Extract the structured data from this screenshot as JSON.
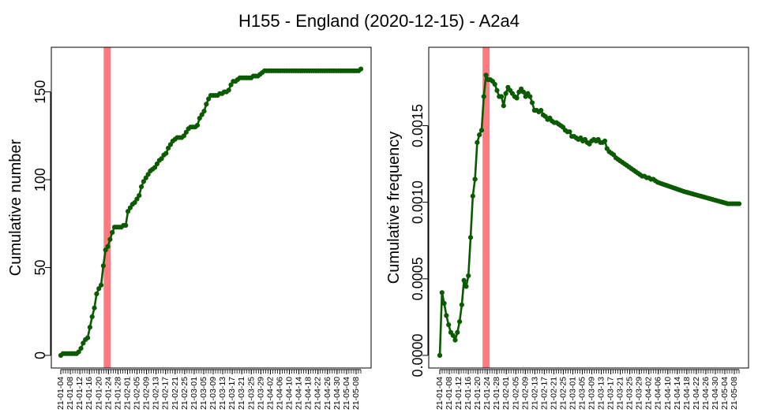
{
  "title": "H155 - England (2020-12-15) - A2a4",
  "colors": {
    "line": "#0a5b00",
    "highlight": "#ff7b7f",
    "axis": "#000000"
  },
  "shared_x_ticks": [
    "21-01-04",
    "21-01-08",
    "21-01-12",
    "21-01-16",
    "21-01-20",
    "21-01-24",
    "21-01-28",
    "21-02-01",
    "21-02-05",
    "21-02-09",
    "21-02-13",
    "21-02-17",
    "21-02-21",
    "21-02-25",
    "21-03-01",
    "21-03-05",
    "21-03-09",
    "21-03-13",
    "21-03-17",
    "21-03-21",
    "21-03-25",
    "21-03-29",
    "21-04-02",
    "21-04-06",
    "21-04-10",
    "21-04-14",
    "21-04-18",
    "21-04-22",
    "21-04-26",
    "21-04-30",
    "21-05-04",
    "21-05-08"
  ],
  "chart_data": [
    {
      "type": "line",
      "ylabel": "Cumulative number",
      "xlim": [
        "2021-01-04",
        "2021-05-10"
      ],
      "ylim": [
        0,
        170
      ],
      "yticks": [
        0,
        50,
        100,
        150
      ],
      "ytick_labels": [
        "0",
        "50",
        "100",
        "150"
      ],
      "highlight": {
        "start": "2021-01-22",
        "end": "2021-01-25"
      },
      "grid": false,
      "series": [
        {
          "x_start": "2021-01-04",
          "x_end": "2021-05-10",
          "values": [
            0,
            1,
            1,
            1,
            1,
            1,
            1,
            1,
            2,
            4,
            7,
            9,
            10,
            16,
            22,
            27,
            35,
            38,
            40,
            51,
            60,
            62,
            66,
            70,
            73,
            73,
            73,
            73,
            74,
            74,
            82,
            84,
            86,
            87,
            89,
            91,
            96,
            99,
            101,
            103,
            105,
            106,
            107,
            109,
            111,
            112,
            114,
            115,
            118,
            120,
            122,
            123,
            124,
            124,
            124,
            125,
            127,
            129,
            130,
            130,
            130,
            131,
            135,
            137,
            139,
            143,
            146,
            148,
            148,
            148,
            148,
            149,
            149,
            150,
            150,
            151,
            154,
            156,
            156,
            157,
            158,
            158,
            158,
            158,
            158,
            158,
            159,
            159,
            159,
            160,
            161,
            162,
            162,
            162,
            162,
            162,
            162,
            162,
            162,
            162,
            162,
            162,
            162,
            162,
            162,
            162,
            162,
            162,
            162,
            162,
            162,
            162,
            162,
            162,
            162,
            162,
            162,
            162,
            162,
            162,
            162,
            162,
            162,
            162,
            162,
            162,
            162,
            162,
            162,
            162,
            162,
            162,
            162,
            162,
            163
          ]
        }
      ]
    },
    {
      "type": "line",
      "ylabel": "Cumulative frequency",
      "xlim": [
        "2021-01-04",
        "2021-05-10"
      ],
      "ylim": [
        0,
        0.00195
      ],
      "yticks": [
        0,
        0.0005,
        0.001,
        0.0015
      ],
      "ytick_labels": [
        "0.0000",
        "0.0005",
        "0.0010",
        "0.0015"
      ],
      "highlight": {
        "start": "2021-01-22",
        "end": "2021-01-25"
      },
      "grid": false,
      "series": [
        {
          "x_start": "2021-01-04",
          "x_end": "2021-05-10",
          "values": [
            0.0,
            0.00041,
            0.00034,
            0.00026,
            0.0002,
            0.00015,
            0.00013,
            0.0001,
            0.00015,
            0.00022,
            0.00033,
            0.00049,
            0.00045,
            0.00052,
            0.00077,
            0.00104,
            0.00115,
            0.00139,
            0.00144,
            0.00147,
            0.00169,
            0.00183,
            0.0018,
            0.0018,
            0.00179,
            0.00177,
            0.00173,
            0.00169,
            0.00169,
            0.00163,
            0.00171,
            0.00175,
            0.00173,
            0.00171,
            0.00169,
            0.00168,
            0.00172,
            0.00174,
            0.00172,
            0.00169,
            0.00171,
            0.00169,
            0.00165,
            0.0016,
            0.0016,
            0.00159,
            0.0016,
            0.00157,
            0.00156,
            0.00154,
            0.00155,
            0.00153,
            0.00152,
            0.00152,
            0.00151,
            0.0015,
            0.00149,
            0.00147,
            0.00146,
            0.00146,
            0.00143,
            0.00143,
            0.00142,
            0.00141,
            0.00142,
            0.0014,
            0.00141,
            0.00139,
            0.00138,
            0.0014,
            0.00141,
            0.0014,
            0.00141,
            0.00139,
            0.00139,
            0.0014,
            0.00135,
            0.00133,
            0.00132,
            0.00131,
            0.00129,
            0.00128,
            0.00127,
            0.00126,
            0.00125,
            0.00124,
            0.00123,
            0.00122,
            0.00121,
            0.0012,
            0.00119,
            0.00118,
            0.00117,
            0.00117,
            0.00116,
            0.00116,
            0.00115,
            0.00115,
            0.00114,
            0.00113,
            0.001125,
            0.00112,
            0.001115,
            0.00111,
            0.001105,
            0.0011,
            0.001095,
            0.00109,
            0.001085,
            0.00108,
            0.001075,
            0.00107,
            0.001066,
            0.001062,
            0.001058,
            0.001054,
            0.00105,
            0.001046,
            0.001042,
            0.001038,
            0.001034,
            0.00103,
            0.001026,
            0.001022,
            0.001018,
            0.001014,
            0.00101,
            0.001006,
            0.001002,
            0.000998,
            0.000994,
            0.00099,
            0.00099,
            0.00099,
            0.00099,
            0.00099,
            0.00099
          ]
        }
      ]
    }
  ]
}
